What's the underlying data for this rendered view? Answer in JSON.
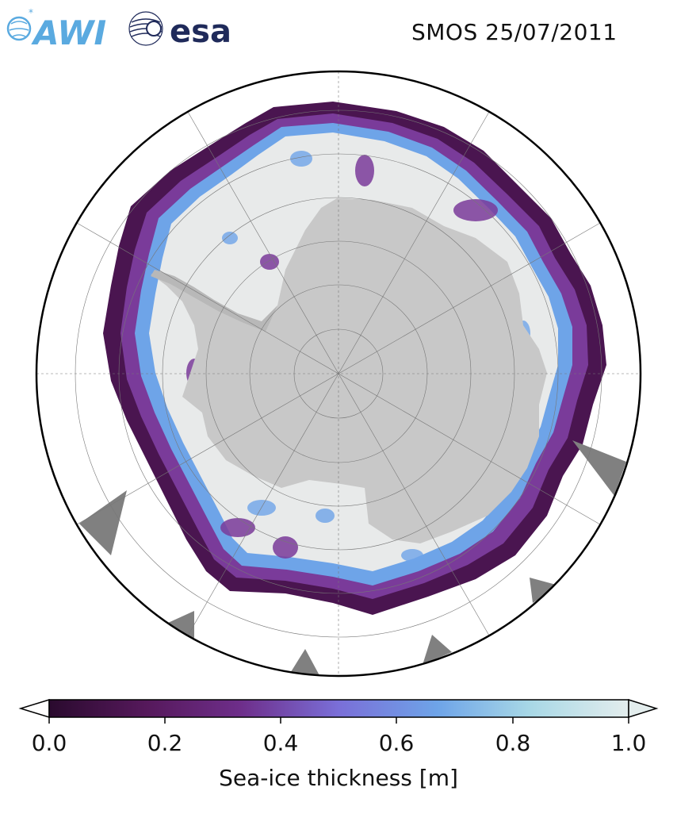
{
  "header": {
    "title": "SMOS 25/07/2011",
    "logos": [
      {
        "name": "AWI",
        "text": "AWI",
        "color": "#5aaae0"
      },
      {
        "name": "esa",
        "text": "esa",
        "color": "#1f2a5a"
      }
    ]
  },
  "map": {
    "projection": "south-polar-stereographic",
    "land_color": "#c8c8c8",
    "ocean_color": "#ffffff",
    "nodata_color": "#808080",
    "gridlines": true
  },
  "colorbar": {
    "label": "Sea-ice thickness [m]",
    "min": 0.0,
    "max": 1.0,
    "extend": "both",
    "ticks": [
      "0.0",
      "0.2",
      "0.4",
      "0.6",
      "0.8",
      "1.0"
    ],
    "colormap": [
      "#2a0a2e",
      "#56195c",
      "#7a3b9a",
      "#7a6fd8",
      "#6ea4e8",
      "#a8d8e6",
      "#e3eded"
    ]
  }
}
